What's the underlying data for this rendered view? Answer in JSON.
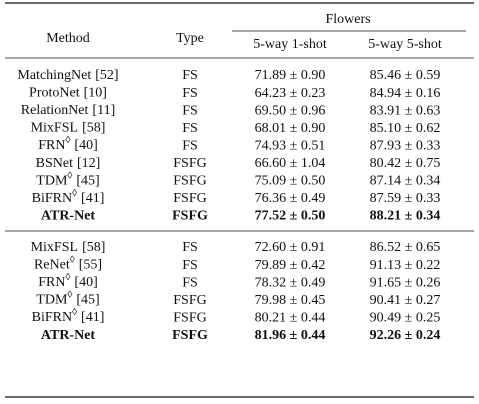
{
  "table": {
    "group_header": "Flowers",
    "columns": [
      "Method",
      "Type",
      "5-way 1-shot",
      "5-way 5-shot"
    ],
    "groups": [
      [
        {
          "method": "MatchingNet",
          "ref": "[52]",
          "type": "FS",
          "c1": "71.89 ± 0.90",
          "c2": "85.46 ± 0.59"
        },
        {
          "method": "ProtoNet",
          "ref": "[10]",
          "type": "FS",
          "c1": "64.23 ± 0.23",
          "c2": "84.94 ± 0.16"
        },
        {
          "method": "RelationNet",
          "ref": "[11]",
          "type": "FS",
          "c1": "69.50 ± 0.96",
          "c2": "83.91 ± 0.63"
        },
        {
          "method": "MixFSL",
          "ref": "[58]",
          "type": "FS",
          "c1": "68.01 ± 0.90",
          "c2": "85.10 ± 0.62"
        },
        {
          "method": "FRN",
          "mark": "◊",
          "ref": "[40]",
          "type": "FS",
          "c1": "74.93 ± 0.51",
          "c2": "87.93 ± 0.33"
        },
        {
          "method": "BSNet",
          "ref": "[12]",
          "type": "FSFG",
          "c1": "66.60 ± 1.04",
          "c2": "80.42 ± 0.75"
        },
        {
          "method": "TDM",
          "mark": "◊",
          "ref": "[45]",
          "type": "FSFG",
          "c1": "75.09 ± 0.50",
          "c2": "87.14 ± 0.34"
        },
        {
          "method": "BiFRN",
          "mark": "◊",
          "ref": "[41]",
          "type": "FSFG",
          "c1": "76.36 ± 0.49",
          "c2": "87.59 ± 0.33"
        },
        {
          "method": "ATR-Net",
          "type": "FSFG",
          "c1": "77.52 ± 0.50",
          "c2": "88.21 ± 0.34",
          "bold": true
        }
      ],
      [
        {
          "method": "MixFSL",
          "ref": "[58]",
          "type": "FS",
          "c1": "72.60 ± 0.91",
          "c2": "86.52 ± 0.65"
        },
        {
          "method": "ReNet",
          "mark": "◊",
          "ref": "[55]",
          "type": "FS",
          "c1": "79.89 ± 0.42",
          "c2": "91.13 ± 0.22"
        },
        {
          "method": "FRN",
          "mark": "◊",
          "ref": "[40]",
          "type": "FS",
          "c1": "78.32 ± 0.49",
          "c2": "91.65 ± 0.26"
        },
        {
          "method": "TDM",
          "mark": "◊",
          "ref": "[45]",
          "type": "FSFG",
          "c1": "79.98 ± 0.45",
          "c2": "90.41 ± 0.27"
        },
        {
          "method": "BiFRN",
          "mark": "◊",
          "ref": "[41]",
          "type": "FSFG",
          "c1": "80.21 ± 0.44",
          "c2": "90.49 ± 0.25"
        },
        {
          "method": "ATR-Net",
          "type": "FSFG",
          "c1": "81.96 ± 0.44",
          "c2": "92.26 ± 0.24",
          "bold": true
        }
      ]
    ]
  }
}
